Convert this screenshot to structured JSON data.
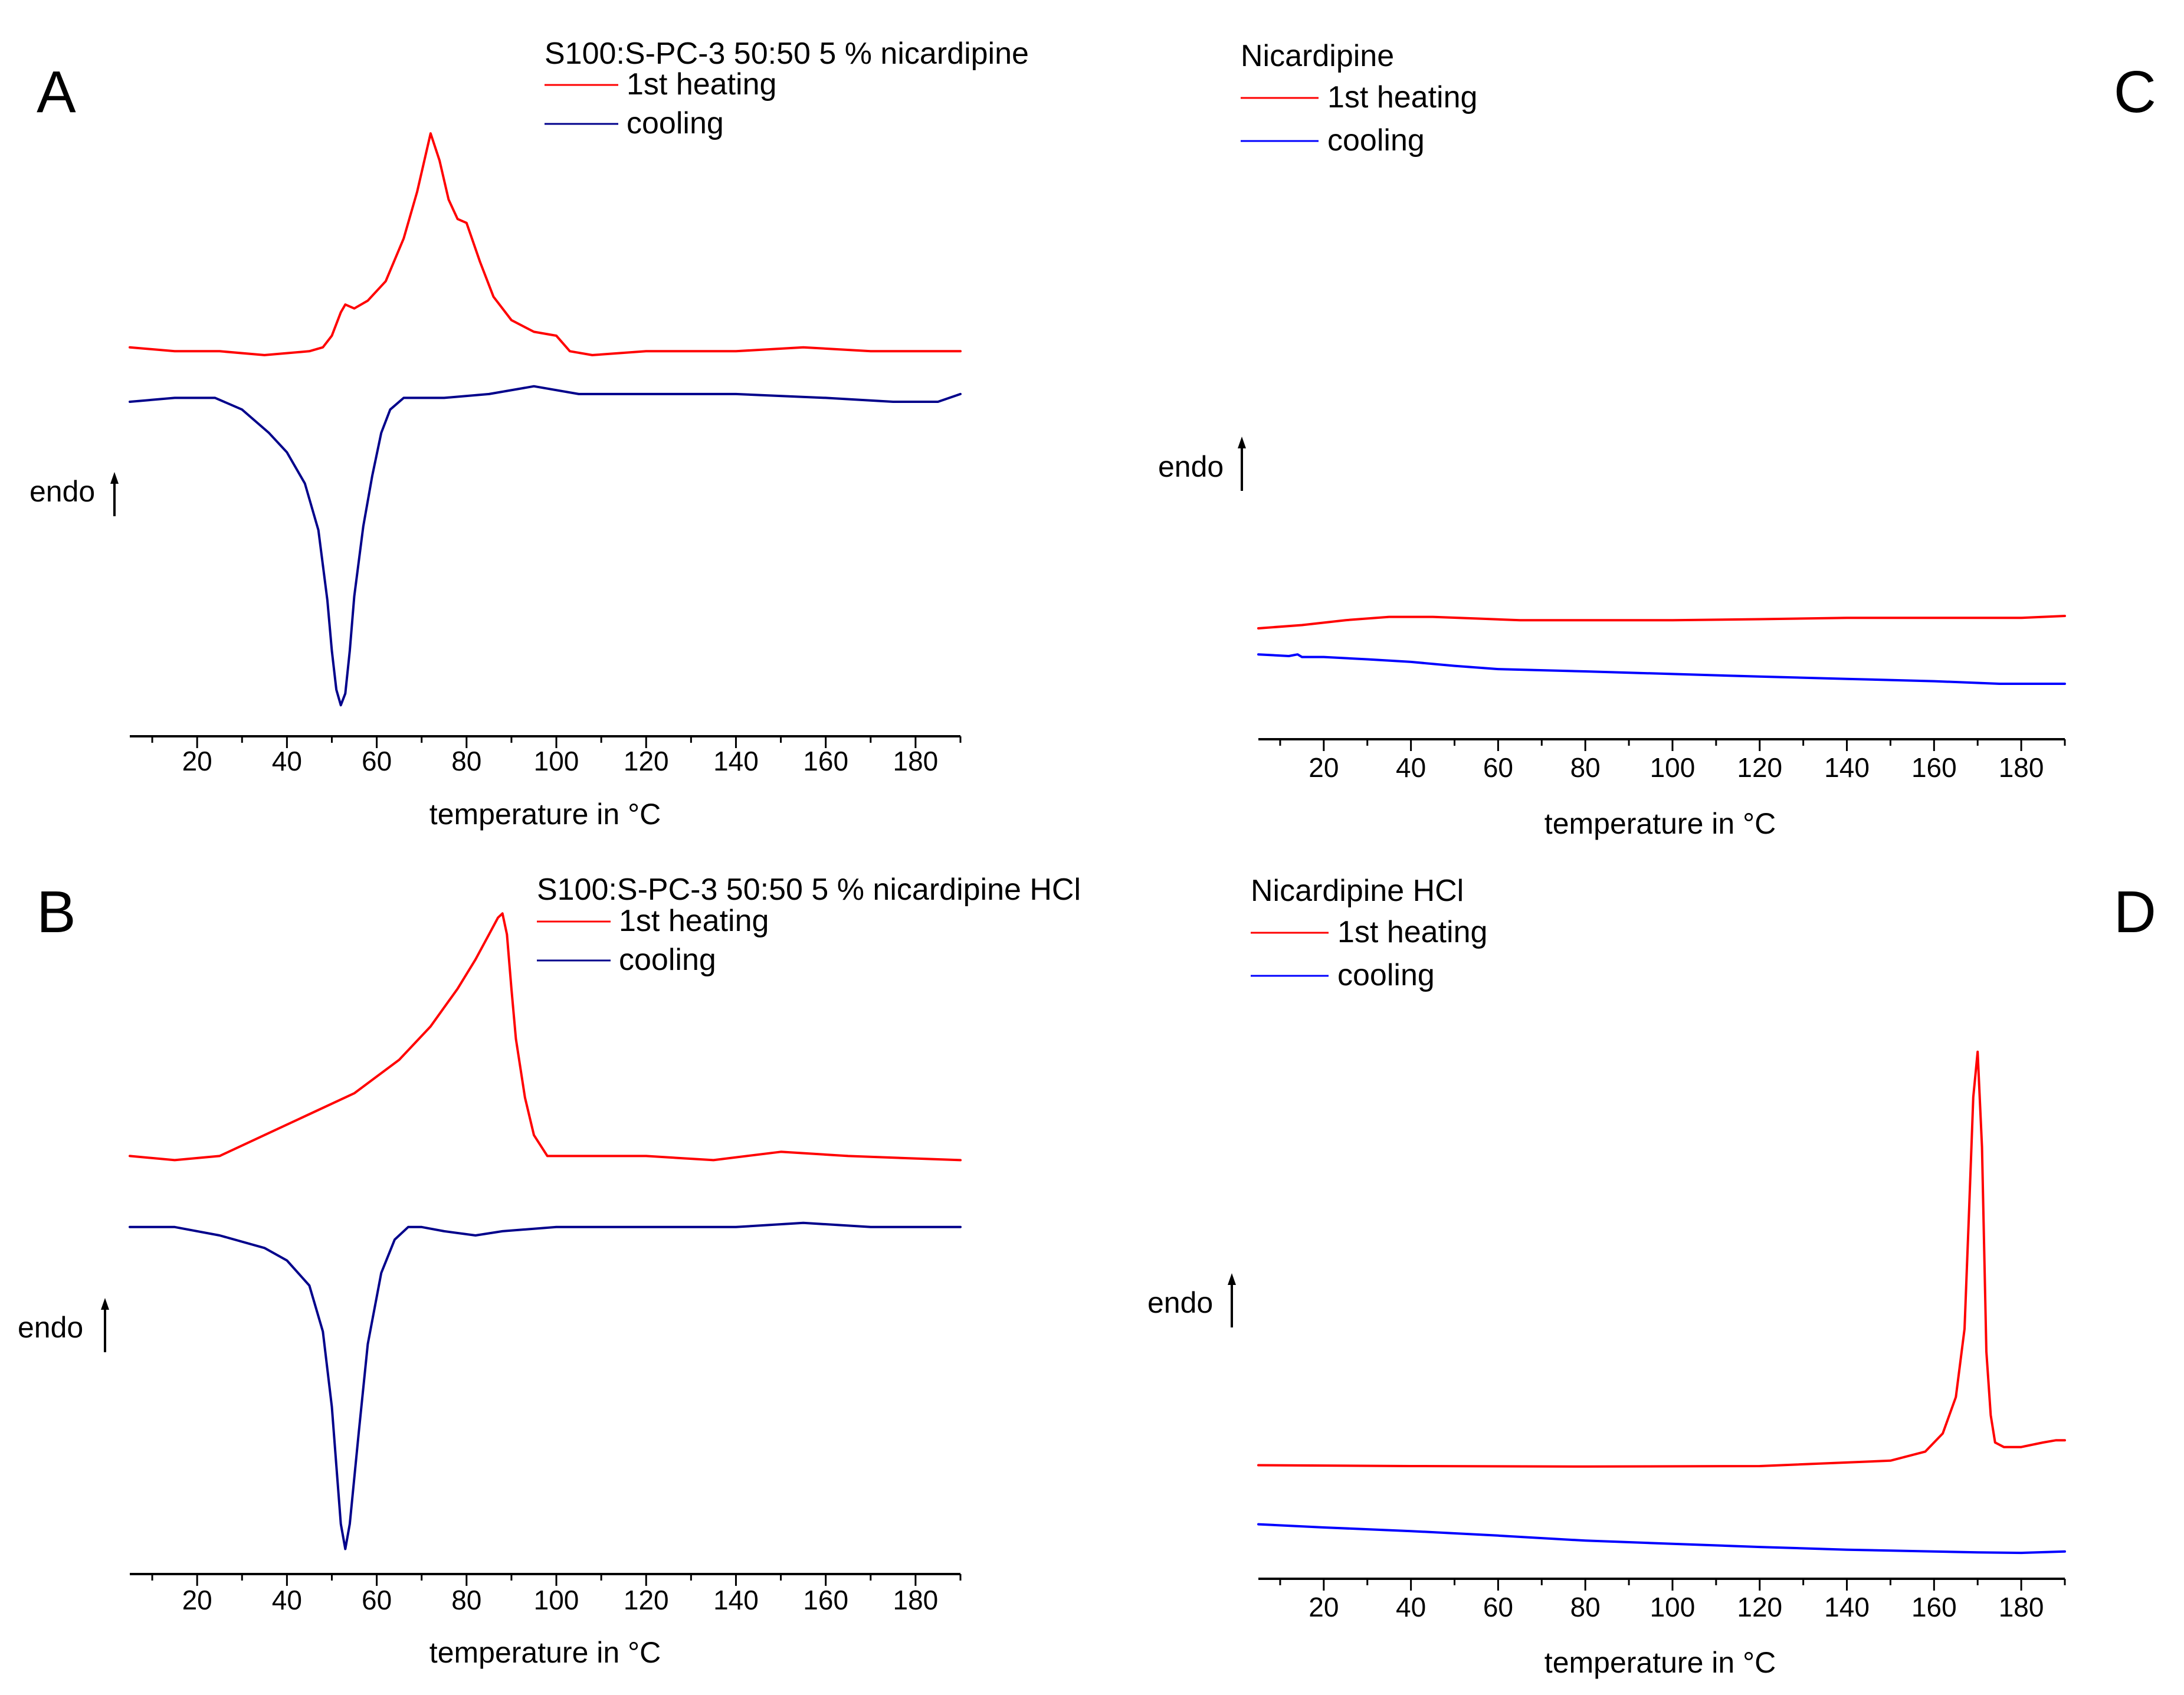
{
  "figure": {
    "panels": [
      {
        "letter": "A",
        "title": "S100:S-PC-3 50:50 5 % nicardipine",
        "endo_label": "endo"
      },
      {
        "letter": "B",
        "title": "S100:S-PC-3 50:50 5 % nicardipine HCl",
        "endo_label": "endo"
      },
      {
        "letter": "C",
        "title": "Nicardipine",
        "endo_label": "endo"
      },
      {
        "letter": "D",
        "title": "Nicardipine HCl",
        "endo_label": "endo"
      }
    ]
  },
  "colors": {
    "heating": "#ff0000",
    "cooling_mixture": "#00008b",
    "cooling_pure": "#0000ff",
    "axis": "#000000"
  },
  "chart_data": [
    {
      "panel": "A",
      "type": "line",
      "title": "S100:S-PC-3 50:50 5 % nicardipine",
      "xlabel": "temperature in °C",
      "ylabel": "endo",
      "xlim": [
        5,
        190
      ],
      "x_ticks": [
        20,
        40,
        60,
        80,
        100,
        120,
        140,
        160,
        180
      ],
      "y_units": "relative heat flow (arbitrary, endo up)",
      "ylim": [
        -1.0,
        0.62
      ],
      "legend": {
        "position": "top",
        "entries": [
          "1st heating",
          "cooling"
        ]
      },
      "series": [
        {
          "name": "1st heating",
          "color_key": "heating",
          "x": [
            5,
            15,
            25,
            35,
            45,
            48,
            50,
            52,
            53,
            55,
            58,
            62,
            66,
            69,
            71,
            72,
            74,
            76,
            78,
            80,
            83,
            86,
            90,
            95,
            100,
            103,
            108,
            120,
            140,
            155,
            170,
            190
          ],
          "y": [
            0.0,
            -0.01,
            -0.01,
            -0.02,
            -0.01,
            0.0,
            0.03,
            0.09,
            0.11,
            0.1,
            0.12,
            0.17,
            0.28,
            0.4,
            0.5,
            0.55,
            0.48,
            0.38,
            0.33,
            0.32,
            0.22,
            0.13,
            0.07,
            0.04,
            0.03,
            -0.01,
            -0.02,
            -0.01,
            -0.01,
            0.0,
            -0.01,
            -0.01
          ]
        },
        {
          "name": "cooling",
          "color_key": "cooling_mixture",
          "x": [
            5,
            15,
            24,
            30,
            36,
            40,
            44,
            47,
            49,
            50,
            51,
            52,
            53,
            54,
            55,
            57,
            59,
            61,
            63,
            66,
            69,
            75,
            85,
            95,
            105,
            120,
            140,
            160,
            175,
            185,
            190
          ],
          "y": [
            -0.14,
            -0.13,
            -0.13,
            -0.16,
            -0.22,
            -0.27,
            -0.35,
            -0.47,
            -0.65,
            -0.78,
            -0.88,
            -0.92,
            -0.89,
            -0.78,
            -0.64,
            -0.46,
            -0.33,
            -0.22,
            -0.16,
            -0.13,
            -0.13,
            -0.13,
            -0.12,
            -0.1,
            -0.12,
            -0.12,
            -0.12,
            -0.13,
            -0.14,
            -0.14,
            -0.12
          ]
        }
      ]
    },
    {
      "panel": "B",
      "type": "line",
      "title": "S100:S-PC-3 50:50 5 % nicardipine HCl",
      "xlabel": "temperature in °C",
      "ylabel": "endo",
      "xlim": [
        5,
        190
      ],
      "x_ticks": [
        20,
        40,
        60,
        80,
        100,
        120,
        140,
        160,
        180
      ],
      "y_units": "relative heat flow (arbitrary, endo up)",
      "ylim": [
        -1.0,
        0.62
      ],
      "legend": {
        "position": "top",
        "entries": [
          "1st heating",
          "cooling"
        ]
      },
      "series": [
        {
          "name": "1st heating",
          "color_key": "heating",
          "x": [
            5,
            15,
            25,
            35,
            45,
            55,
            65,
            72,
            78,
            82,
            85,
            87,
            88,
            89,
            90,
            91,
            93,
            95,
            98,
            105,
            120,
            135,
            150,
            165,
            190
          ],
          "y": [
            0.0,
            -0.01,
            0.0,
            0.05,
            0.1,
            0.15,
            0.23,
            0.31,
            0.4,
            0.47,
            0.53,
            0.57,
            0.58,
            0.53,
            0.4,
            0.28,
            0.14,
            0.05,
            0.0,
            0.0,
            0.0,
            -0.01,
            0.01,
            0.0,
            -0.01
          ]
        },
        {
          "name": "cooling",
          "color_key": "cooling_mixture",
          "x": [
            5,
            15,
            25,
            35,
            40,
            45,
            48,
            50,
            51,
            52,
            53,
            54,
            56,
            58,
            61,
            64,
            67,
            70,
            75,
            82,
            88,
            100,
            120,
            140,
            155,
            170,
            190
          ],
          "y": [
            -0.17,
            -0.17,
            -0.19,
            -0.22,
            -0.25,
            -0.31,
            -0.42,
            -0.6,
            -0.74,
            -0.88,
            -0.94,
            -0.88,
            -0.66,
            -0.45,
            -0.28,
            -0.2,
            -0.17,
            -0.17,
            -0.18,
            -0.19,
            -0.18,
            -0.17,
            -0.17,
            -0.17,
            -0.16,
            -0.17,
            -0.17
          ]
        }
      ]
    },
    {
      "panel": "C",
      "type": "line",
      "title": "Nicardipine",
      "xlabel": "temperature in °C",
      "ylabel": "endo",
      "xlim": [
        5,
        190
      ],
      "x_ticks": [
        20,
        40,
        60,
        80,
        100,
        120,
        140,
        160,
        180
      ],
      "y_units": "relative heat flow (arbitrary, endo up)",
      "ylim": [
        -0.4,
        0.6
      ],
      "legend": {
        "position": "top",
        "entries": [
          "1st heating",
          "cooling"
        ]
      },
      "series": [
        {
          "name": "1st heating",
          "color_key": "heating",
          "x": [
            5,
            15,
            25,
            35,
            45,
            55,
            65,
            80,
            100,
            120,
            140,
            160,
            180,
            190
          ],
          "y": [
            -0.06,
            -0.05,
            -0.035,
            -0.025,
            -0.025,
            -0.03,
            -0.035,
            -0.035,
            -0.035,
            -0.032,
            -0.028,
            -0.028,
            -0.028,
            -0.022
          ]
        },
        {
          "name": "cooling",
          "color_key": "cooling_pure",
          "x": [
            5,
            12,
            14,
            15,
            20,
            30,
            40,
            50,
            60,
            80,
            100,
            120,
            140,
            160,
            175,
            190
          ],
          "y": [
            -0.14,
            -0.145,
            -0.14,
            -0.148,
            -0.148,
            -0.155,
            -0.163,
            -0.175,
            -0.185,
            -0.192,
            -0.2,
            -0.208,
            -0.215,
            -0.222,
            -0.23,
            -0.23
          ]
        }
      ]
    },
    {
      "panel": "D",
      "type": "line",
      "title": "Nicardipine HCl",
      "xlabel": "temperature in °C",
      "ylabel": "endo",
      "xlim": [
        5,
        190
      ],
      "x_ticks": [
        20,
        40,
        60,
        80,
        100,
        120,
        140,
        160,
        180
      ],
      "y_units": "relative heat flow (arbitrary, endo up)",
      "ylim": [
        -0.4,
        0.9
      ],
      "legend": {
        "position": "top",
        "entries": [
          "1st heating",
          "cooling"
        ]
      },
      "series": [
        {
          "name": "1st heating",
          "color_key": "heating",
          "x": [
            5,
            40,
            80,
            120,
            150,
            158,
            162,
            165,
            167,
            168,
            169,
            170,
            171,
            172,
            173,
            174,
            176,
            180,
            185,
            188,
            190
          ],
          "y": [
            -0.15,
            -0.152,
            -0.153,
            -0.152,
            -0.14,
            -0.12,
            -0.08,
            0.0,
            0.15,
            0.4,
            0.66,
            0.76,
            0.55,
            0.1,
            -0.04,
            -0.1,
            -0.11,
            -0.11,
            -0.1,
            -0.095,
            -0.095
          ]
        },
        {
          "name": "cooling",
          "color_key": "cooling_pure",
          "x": [
            5,
            20,
            40,
            60,
            80,
            100,
            120,
            140,
            160,
            170,
            180,
            190
          ],
          "y": [
            -0.28,
            -0.287,
            -0.295,
            -0.305,
            -0.316,
            -0.323,
            -0.33,
            -0.336,
            -0.34,
            -0.342,
            -0.343,
            -0.34
          ]
        }
      ]
    }
  ]
}
